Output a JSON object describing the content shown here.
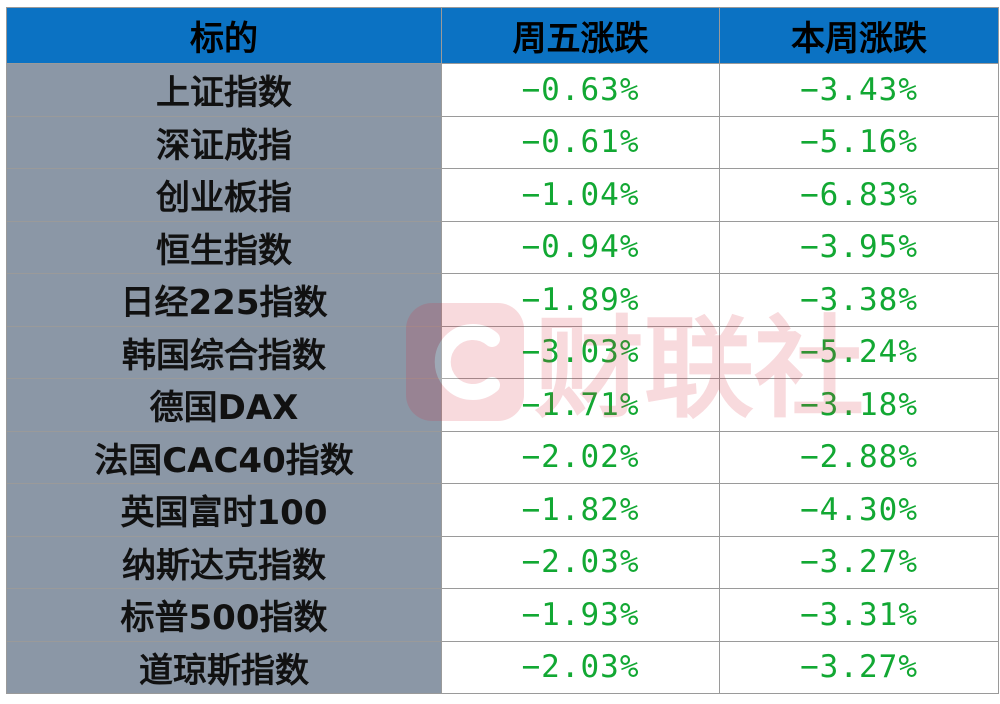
{
  "table": {
    "headers": [
      "标的",
      "周五涨跌",
      "本周涨跌"
    ],
    "rows": [
      {
        "name": "上证指数",
        "friday": "−0.63%",
        "week": "−3.43%"
      },
      {
        "name": "深证成指",
        "friday": "−0.61%",
        "week": "−5.16%"
      },
      {
        "name": "创业板指",
        "friday": "−1.04%",
        "week": "−6.83%"
      },
      {
        "name": "恒生指数",
        "friday": "−0.94%",
        "week": "−3.95%"
      },
      {
        "name": "日经225指数",
        "friday": "−1.89%",
        "week": "−3.38%"
      },
      {
        "name": "韩国综合指数",
        "friday": "−3.03%",
        "week": "−5.24%"
      },
      {
        "name": "德国DAX",
        "friday": "−1.71%",
        "week": "−3.18%"
      },
      {
        "name": "法国CAC40指数",
        "friday": "−2.02%",
        "week": "−2.88%"
      },
      {
        "name": "英国富时100",
        "friday": "−1.82%",
        "week": "−4.30%"
      },
      {
        "name": "纳斯达克指数",
        "friday": "−2.03%",
        "week": "−3.27%"
      },
      {
        "name": "标普500指数",
        "friday": "−1.93%",
        "week": "−3.31%"
      },
      {
        "name": "道琼斯指数",
        "friday": "−2.03%",
        "week": "−3.27%"
      }
    ]
  },
  "watermark": {
    "text": "财联社",
    "color": "#d8283a"
  },
  "colors": {
    "header_bg": "#0b72c3",
    "name_bg": "#8b97a6",
    "negative_value": "#12a833",
    "grid": "#9a9a9a"
  }
}
